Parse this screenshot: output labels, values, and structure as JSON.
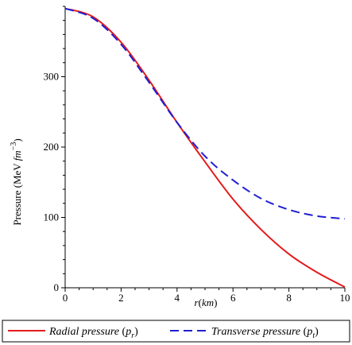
{
  "chart_data": {
    "type": "line",
    "xlabel": "r(km)",
    "ylabel": "Pressure (MeV fm^-3)",
    "xlim": [
      0,
      10
    ],
    "ylim": [
      0,
      400
    ],
    "x_ticks": [
      0,
      2,
      4,
      6,
      8,
      10
    ],
    "y_ticks": [
      0,
      100,
      200,
      300
    ],
    "grid": false,
    "legend_position": "bottom",
    "x": [
      0,
      1,
      2,
      3,
      4,
      5,
      6,
      7,
      8,
      9,
      10
    ],
    "series": [
      {
        "name": "Radial pressure (p_r)",
        "color": "#e41a1c",
        "style": "solid",
        "values": [
          397,
          385,
          349,
          295,
          235,
          179,
          126,
          83,
          48,
          22,
          1
        ]
      },
      {
        "name": "Transverse pressure (p_t)",
        "color": "#1f1fd0",
        "style": "dashed",
        "values": [
          397,
          383,
          346,
          292,
          235,
          187,
          153,
          127,
          111,
          102,
          98
        ]
      }
    ]
  }
}
